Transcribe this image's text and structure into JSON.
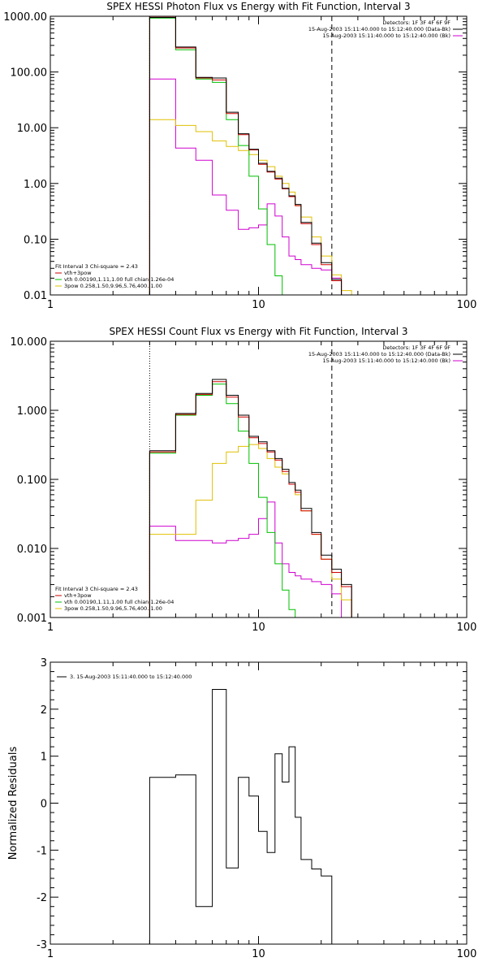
{
  "chart_data": [
    {
      "type": "line",
      "title": "SPEX HESSI Photon Flux vs Energy with Fit Function, Interval 3",
      "xscale": "log",
      "yscale": "log",
      "xlim": [
        1,
        100
      ],
      "ylim": [
        0.01,
        1000
      ],
      "xticks": [
        "1",
        "10",
        "100"
      ],
      "yticks": [
        "0.01",
        "0.10",
        "1.00",
        "10.00",
        "100.00",
        "1000.00"
      ],
      "header_lines": [
        "Detectors: 1F 3F 4F 6F 9F",
        "15-Aug-2003 15:11:40.000 to 15:12:40.000 (Data-Bk)",
        "15-Aug-2003 15:11:40.000 to 15:12:40.000 (Bk)"
      ],
      "legend_title": "Fit Interval 3   Chi-square = 2.43",
      "legend_entries": [
        {
          "label": "vth+3pow",
          "color": "#d00000"
        },
        {
          "label": "vth 0.00190,1.11,1.00  full chian 1.26e-04",
          "color": "#00c000"
        },
        {
          "label": "3pow 0.258,1.50,9.96,5.76,400.,1.00",
          "color": "#e0c000"
        }
      ],
      "vlines": [
        {
          "x": 3.0,
          "style": "dotted",
          "color": "#000000"
        },
        {
          "x": 22.5,
          "style": "dashed",
          "color": "#000000"
        }
      ],
      "edges": [
        3.0,
        4.0,
        5.0,
        6.0,
        7.0,
        8.0,
        9.0,
        10.0,
        11.0,
        12.0,
        13.0,
        14.0,
        15.0,
        16.0,
        18.0,
        20.0,
        22.5,
        25.0,
        28.0
      ],
      "series": [
        {
          "name": "Data-Bk",
          "color": "#000000",
          "values": [
            950,
            280,
            80,
            78,
            19,
            7.8,
            4.1,
            2.3,
            1.65,
            1.25,
            0.82,
            0.6,
            0.42,
            0.2,
            0.085,
            0.038,
            0.019,
            0.01
          ]
        },
        {
          "name": "vth+3pow",
          "color": "#d00000",
          "values": [
            960,
            270,
            78,
            72,
            18,
            7.5,
            4.0,
            2.2,
            1.6,
            1.2,
            0.8,
            0.58,
            0.4,
            0.19,
            0.08,
            0.035,
            0.018,
            0.01
          ]
        },
        {
          "name": "vth",
          "color": "#00c000",
          "values": [
            930,
            250,
            75,
            65,
            14,
            4.8,
            1.35,
            0.35,
            0.08,
            0.022,
            0.009,
            null,
            null,
            null,
            null,
            null,
            null,
            null
          ]
        },
        {
          "name": "3pow",
          "color": "#e0c000",
          "values": [
            14,
            11,
            8.5,
            5.8,
            4.6,
            3.9,
            3.3,
            2.6,
            2.0,
            1.35,
            1.0,
            0.7,
            0.4,
            0.25,
            0.11,
            0.05,
            0.023,
            0.012
          ]
        },
        {
          "name": "Bk",
          "color": "#d000d0",
          "values": [
            75,
            4.3,
            2.6,
            0.62,
            0.33,
            0.15,
            0.16,
            0.18,
            0.43,
            0.26,
            0.11,
            0.05,
            0.043,
            0.035,
            0.03,
            0.028,
            0.02,
            null
          ]
        }
      ]
    },
    {
      "type": "line",
      "title": "SPEX HESSI Count Flux vs Energy with Fit Function, Interval 3",
      "xscale": "log",
      "yscale": "log",
      "xlim": [
        1,
        100
      ],
      "ylim": [
        0.001,
        10
      ],
      "xticks": [
        "1",
        "10",
        "100"
      ],
      "yticks": [
        "0.001",
        "0.010",
        "0.100",
        "1.000",
        "10.000"
      ],
      "header_lines": [
        "Detectors: 1F 3F 4F 6F 9F",
        "15-Aug-2003 15:11:40.000 to 15:12:40.000 (Data-Bk)",
        "15-Aug-2003 15:11:40.000 to 15:12:40.000 (Bk)"
      ],
      "legend_title": "Fit Interval 3   Chi-square = 2.43",
      "legend_entries": [
        {
          "label": "vth+3pow",
          "color": "#d00000"
        },
        {
          "label": "vth 0.00190,1.11,1.00  full chian 1.26e-04",
          "color": "#00c000"
        },
        {
          "label": "3pow 0.258,1.50,9.96,5.76,400.,1.00",
          "color": "#e0c000"
        }
      ],
      "vlines": [
        {
          "x": 3.0,
          "style": "dotted",
          "color": "#000000"
        },
        {
          "x": 22.5,
          "style": "dashed",
          "color": "#000000"
        }
      ],
      "edges": [
        3.0,
        4.0,
        5.0,
        6.0,
        7.0,
        8.0,
        9.0,
        10.0,
        11.0,
        12.0,
        13.0,
        14.0,
        15.0,
        16.0,
        18.0,
        20.0,
        22.5,
        25.0,
        28.0
      ],
      "series": [
        {
          "name": "Data-Bk",
          "color": "#000000",
          "values": [
            0.26,
            0.9,
            1.75,
            2.8,
            1.65,
            0.85,
            0.42,
            0.35,
            0.26,
            0.2,
            0.14,
            0.09,
            0.07,
            0.038,
            0.017,
            0.008,
            0.005,
            0.003
          ]
        },
        {
          "name": "vth+3pow",
          "color": "#d00000",
          "values": [
            0.25,
            0.87,
            1.7,
            2.6,
            1.55,
            0.8,
            0.4,
            0.33,
            0.25,
            0.19,
            0.13,
            0.085,
            0.065,
            0.035,
            0.016,
            0.007,
            0.0045,
            0.0028
          ]
        },
        {
          "name": "vth",
          "color": "#00c000",
          "values": [
            0.24,
            0.85,
            1.65,
            2.4,
            1.25,
            0.5,
            0.17,
            0.055,
            0.017,
            0.006,
            0.0025,
            0.0013,
            null,
            null,
            null,
            null,
            null,
            null
          ]
        },
        {
          "name": "3pow",
          "color": "#e0c000",
          "values": [
            0.016,
            0.016,
            0.05,
            0.17,
            0.25,
            0.3,
            0.32,
            0.28,
            0.2,
            0.15,
            0.12,
            0.085,
            0.06,
            0.035,
            0.016,
            0.007,
            0.0036,
            0.0018
          ]
        },
        {
          "name": "Bk",
          "color": "#d000d0",
          "values": [
            0.021,
            0.013,
            0.013,
            0.012,
            0.013,
            0.014,
            0.016,
            0.027,
            0.047,
            0.012,
            0.006,
            0.0045,
            0.004,
            0.0036,
            0.0033,
            0.003,
            0.0022,
            null
          ]
        }
      ]
    },
    {
      "type": "line",
      "title": "",
      "xscale": "log",
      "yscale": "linear",
      "xlim": [
        1,
        100
      ],
      "ylim": [
        -3,
        3
      ],
      "ylabel": "Normalized Residuals",
      "xticks": [
        "1",
        "10",
        "100"
      ],
      "yticks": [
        "-3",
        "-2",
        "-1",
        "0",
        "1",
        "2",
        "3"
      ],
      "legend_entries": [
        {
          "label": "3. 15-Aug-2003 15:11:40.000 to 15:12:40.000",
          "color": "#000000"
        }
      ],
      "edges": [
        3.0,
        4.0,
        5.0,
        6.0,
        7.0,
        8.0,
        9.0,
        10.0,
        11.0,
        12.0,
        13.0,
        14.0,
        15.0,
        16.0,
        18.0,
        20.0,
        22.5
      ],
      "series": [
        {
          "name": "Residuals",
          "color": "#000000",
          "values": [
            0.55,
            0.6,
            -2.2,
            2.42,
            -1.38,
            0.55,
            0.15,
            -0.6,
            -1.05,
            1.05,
            0.45,
            1.2,
            -0.3,
            -1.2,
            -1.4,
            -1.55
          ]
        }
      ]
    }
  ]
}
